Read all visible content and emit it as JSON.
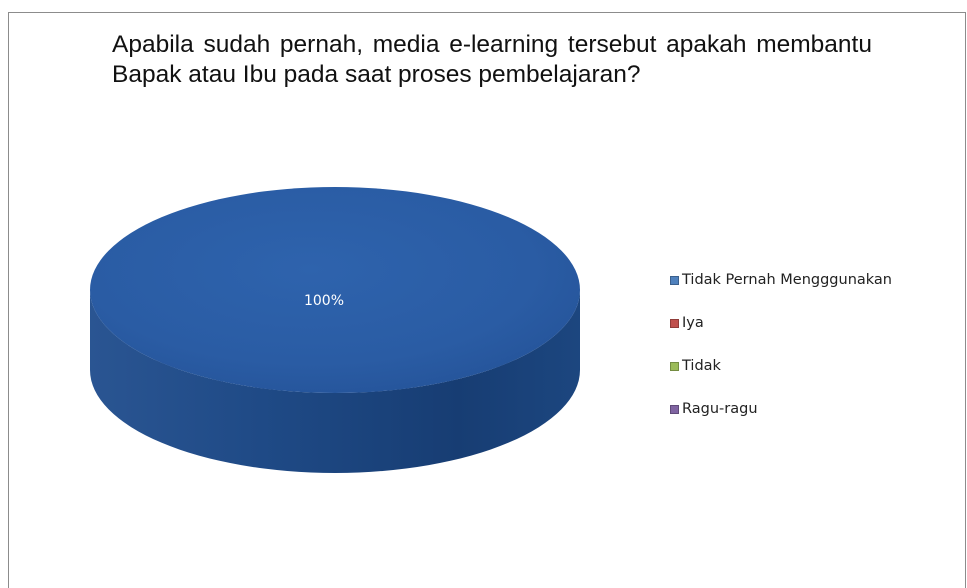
{
  "chart_data": {
    "type": "pie",
    "title": "Apabila sudah pernah, media e-learning tersebut apakah membantu Bapak atau Ibu pada saat proses pembelajaran?",
    "categories": [
      "Tidak Pernah Mengggunakan",
      "Iya",
      "Tidak",
      "Ragu-ragu"
    ],
    "values": [
      100,
      0,
      0,
      0
    ],
    "data_labels": [
      "100%"
    ],
    "style": "3d",
    "legend_position": "right",
    "colors": [
      "#4f81bd",
      "#c0504d",
      "#9bbb59",
      "#8064a2"
    ]
  },
  "legend": {
    "items": [
      {
        "label": "Tidak Pernah Mengggunakan",
        "color": "#4f81bd"
      },
      {
        "label": "Iya",
        "color": "#c0504d"
      },
      {
        "label": "Tidak",
        "color": "#9bbb59"
      },
      {
        "label": "Ragu-ragu",
        "color": "#8064a2"
      }
    ]
  }
}
